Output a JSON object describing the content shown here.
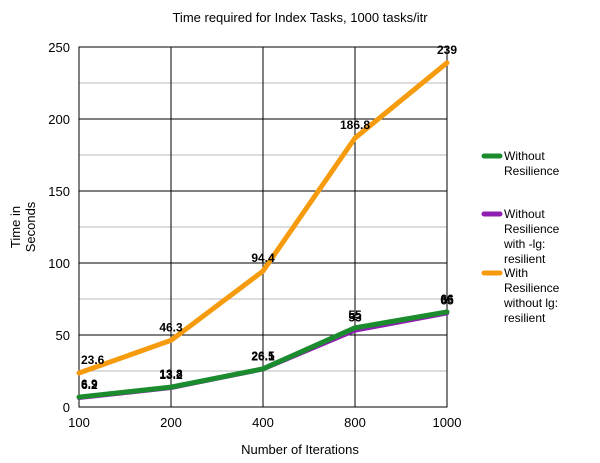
{
  "chart_data": {
    "type": "line",
    "title": "Time required for Index Tasks, 1000 tasks/itr",
    "xlabel": "Number of Iterations",
    "ylabel_lines": [
      "Time in",
      "Seconds"
    ],
    "x": [
      100,
      200,
      400,
      800,
      1000
    ],
    "x_tick_labels": [
      "100",
      "200",
      "400",
      "800",
      "1000"
    ],
    "ylim": [
      0,
      250
    ],
    "y_ticks": [
      0,
      50,
      100,
      150,
      200,
      250
    ],
    "y_minor_step": 25,
    "grid": true,
    "legend_position": "right",
    "series": [
      {
        "legend_lines": [
          "Without",
          "Resilience"
        ],
        "color": "#1a8c2e",
        "values": [
          6.9,
          13.8,
          26.5,
          55,
          66
        ],
        "labels": [
          "6.9",
          "13.8",
          "26.5",
          "55",
          "66"
        ]
      },
      {
        "legend_lines": [
          "Without",
          "Resilience",
          "with -lg:",
          "resilient"
        ],
        "color": "#8e1fb0",
        "values": [
          6.2,
          13.2,
          26.1,
          53,
          65
        ],
        "labels": [
          "6.2",
          "13.2",
          "26.1",
          "53",
          "65"
        ]
      },
      {
        "legend_lines": [
          "With",
          "Resilience",
          "without lg:",
          "resilient"
        ],
        "color": "#f59b0d",
        "values": [
          23.6,
          46.3,
          94.4,
          186.8,
          239
        ],
        "labels": [
          "23.6",
          "46.3",
          "94.4",
          "186.8",
          "239"
        ]
      }
    ]
  }
}
